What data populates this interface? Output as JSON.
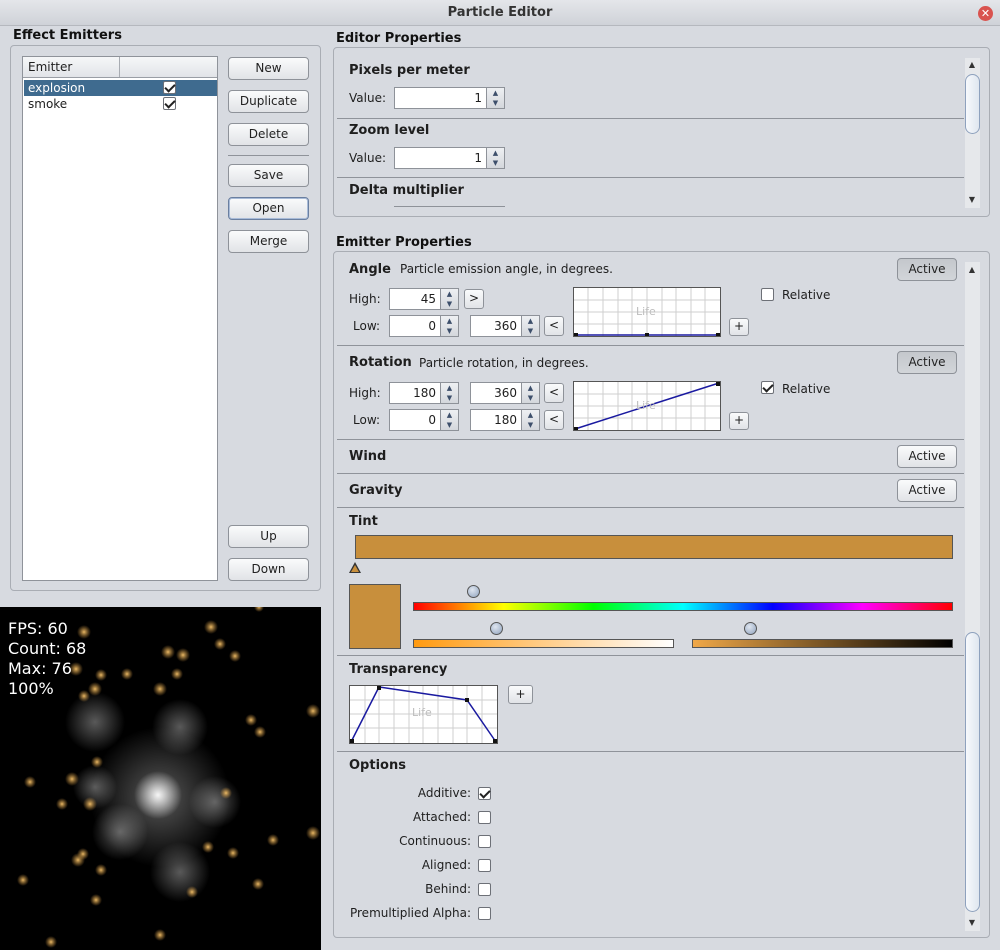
{
  "window": {
    "title": "Particle Editor"
  },
  "effect_emitters": {
    "title": "Effect Emitters",
    "column_header": "Emitter",
    "rows": [
      {
        "name": "explosion",
        "enabled": true,
        "selected": true
      },
      {
        "name": "smoke",
        "enabled": true,
        "selected": false
      }
    ],
    "buttons": {
      "new": "New",
      "duplicate": "Duplicate",
      "delete": "Delete",
      "save": "Save",
      "open": "Open",
      "merge": "Merge",
      "up": "Up",
      "down": "Down"
    }
  },
  "preview": {
    "fps": "FPS: 60",
    "count": "Count: 68",
    "max": "Max: 76",
    "zoom": "100%"
  },
  "editor_properties": {
    "title": "Editor Properties",
    "pixels_per_meter": {
      "label": "Pixels per meter",
      "value_label": "Value:",
      "value": "1"
    },
    "zoom_level": {
      "label": "Zoom level",
      "value_label": "Value:",
      "value": "1"
    },
    "delta_multiplier": {
      "label": "Delta multiplier"
    }
  },
  "emitter_properties": {
    "title": "Emitter Properties",
    "angle": {
      "label": "Angle",
      "description": "Particle emission angle, in degrees.",
      "active_label": "Active",
      "active": false,
      "high_label": "High:",
      "high": "45",
      "high_expand": ">",
      "low_label": "Low:",
      "low": "0",
      "low2": "360",
      "low_collapse": "<",
      "graph_label": "Life",
      "add": "+",
      "relative_label": "Relative",
      "relative": false
    },
    "rotation": {
      "label": "Rotation",
      "description": "Particle rotation, in degrees.",
      "active_label": "Active",
      "active": true,
      "high_label": "High:",
      "high": "180",
      "high2": "360",
      "high_collapse": "<",
      "low_label": "Low:",
      "low": "0",
      "low2": "180",
      "low_collapse": "<",
      "graph_label": "Life",
      "add": "+",
      "relative_label": "Relative",
      "relative": true
    },
    "wind": {
      "label": "Wind",
      "active_label": "Active"
    },
    "gravity": {
      "label": "Gravity",
      "active_label": "Active"
    },
    "tint": {
      "label": "Tint",
      "color": "#c88f3c"
    },
    "transparency": {
      "label": "Transparency",
      "graph_label": "Life",
      "add": "+"
    },
    "options": {
      "label": "Options",
      "items": [
        {
          "label": "Additive:",
          "checked": true
        },
        {
          "label": "Attached:",
          "checked": false
        },
        {
          "label": "Continuous:",
          "checked": false
        },
        {
          "label": "Aligned:",
          "checked": false
        },
        {
          "label": "Behind:",
          "checked": false
        },
        {
          "label": "Premultiplied Alpha:",
          "checked": false
        }
      ]
    }
  },
  "colors": {
    "selection": "#3f6b8f",
    "tint": "#c88f3c",
    "curve": "#1a1aa0"
  }
}
